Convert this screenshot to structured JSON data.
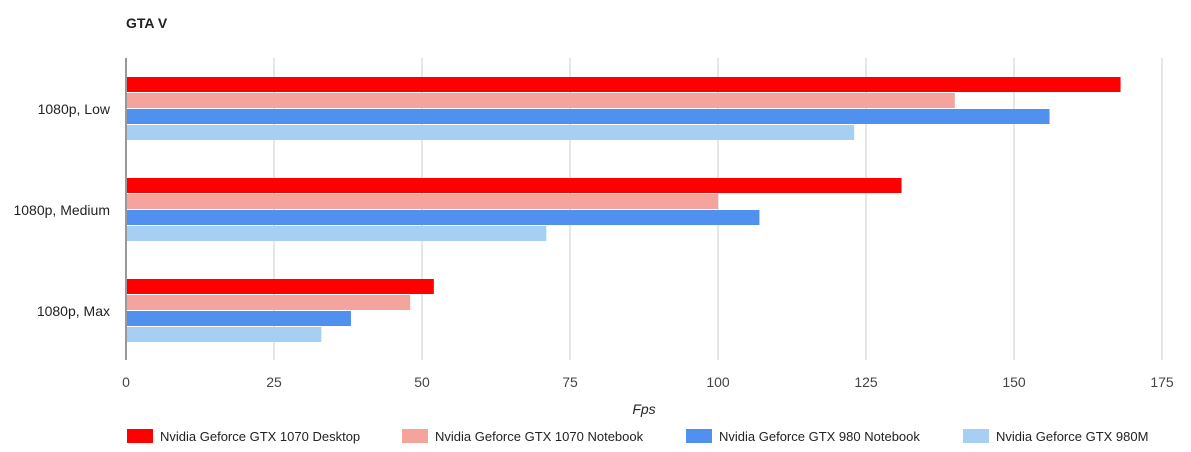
{
  "chart_data": {
    "type": "bar",
    "orientation": "horizontal",
    "title": "GTA V",
    "xlabel": "Fps",
    "ylabel": "",
    "xlim": [
      0,
      175
    ],
    "ticks": [
      0,
      25,
      50,
      75,
      100,
      125,
      150,
      175
    ],
    "grid": true,
    "legend_position": "bottom",
    "categories": [
      "1080p, Low",
      "1080p, Medium",
      "1080p, Max"
    ],
    "series": [
      {
        "name": "Nvidia Geforce GTX 1070 Desktop",
        "color": "#ff0000",
        "values": [
          168,
          131,
          52
        ]
      },
      {
        "name": "Nvidia Geforce GTX 1070 Notebook",
        "color": "#f4a49c",
        "values": [
          140,
          100,
          48
        ]
      },
      {
        "name": "Nvidia Geforce GTX 980 Notebook",
        "color": "#5090ef",
        "values": [
          156,
          107,
          38
        ]
      },
      {
        "name": "Nvidia Geforce GTX 980M",
        "color": "#a7cff3",
        "values": [
          123,
          71,
          33
        ]
      }
    ]
  }
}
